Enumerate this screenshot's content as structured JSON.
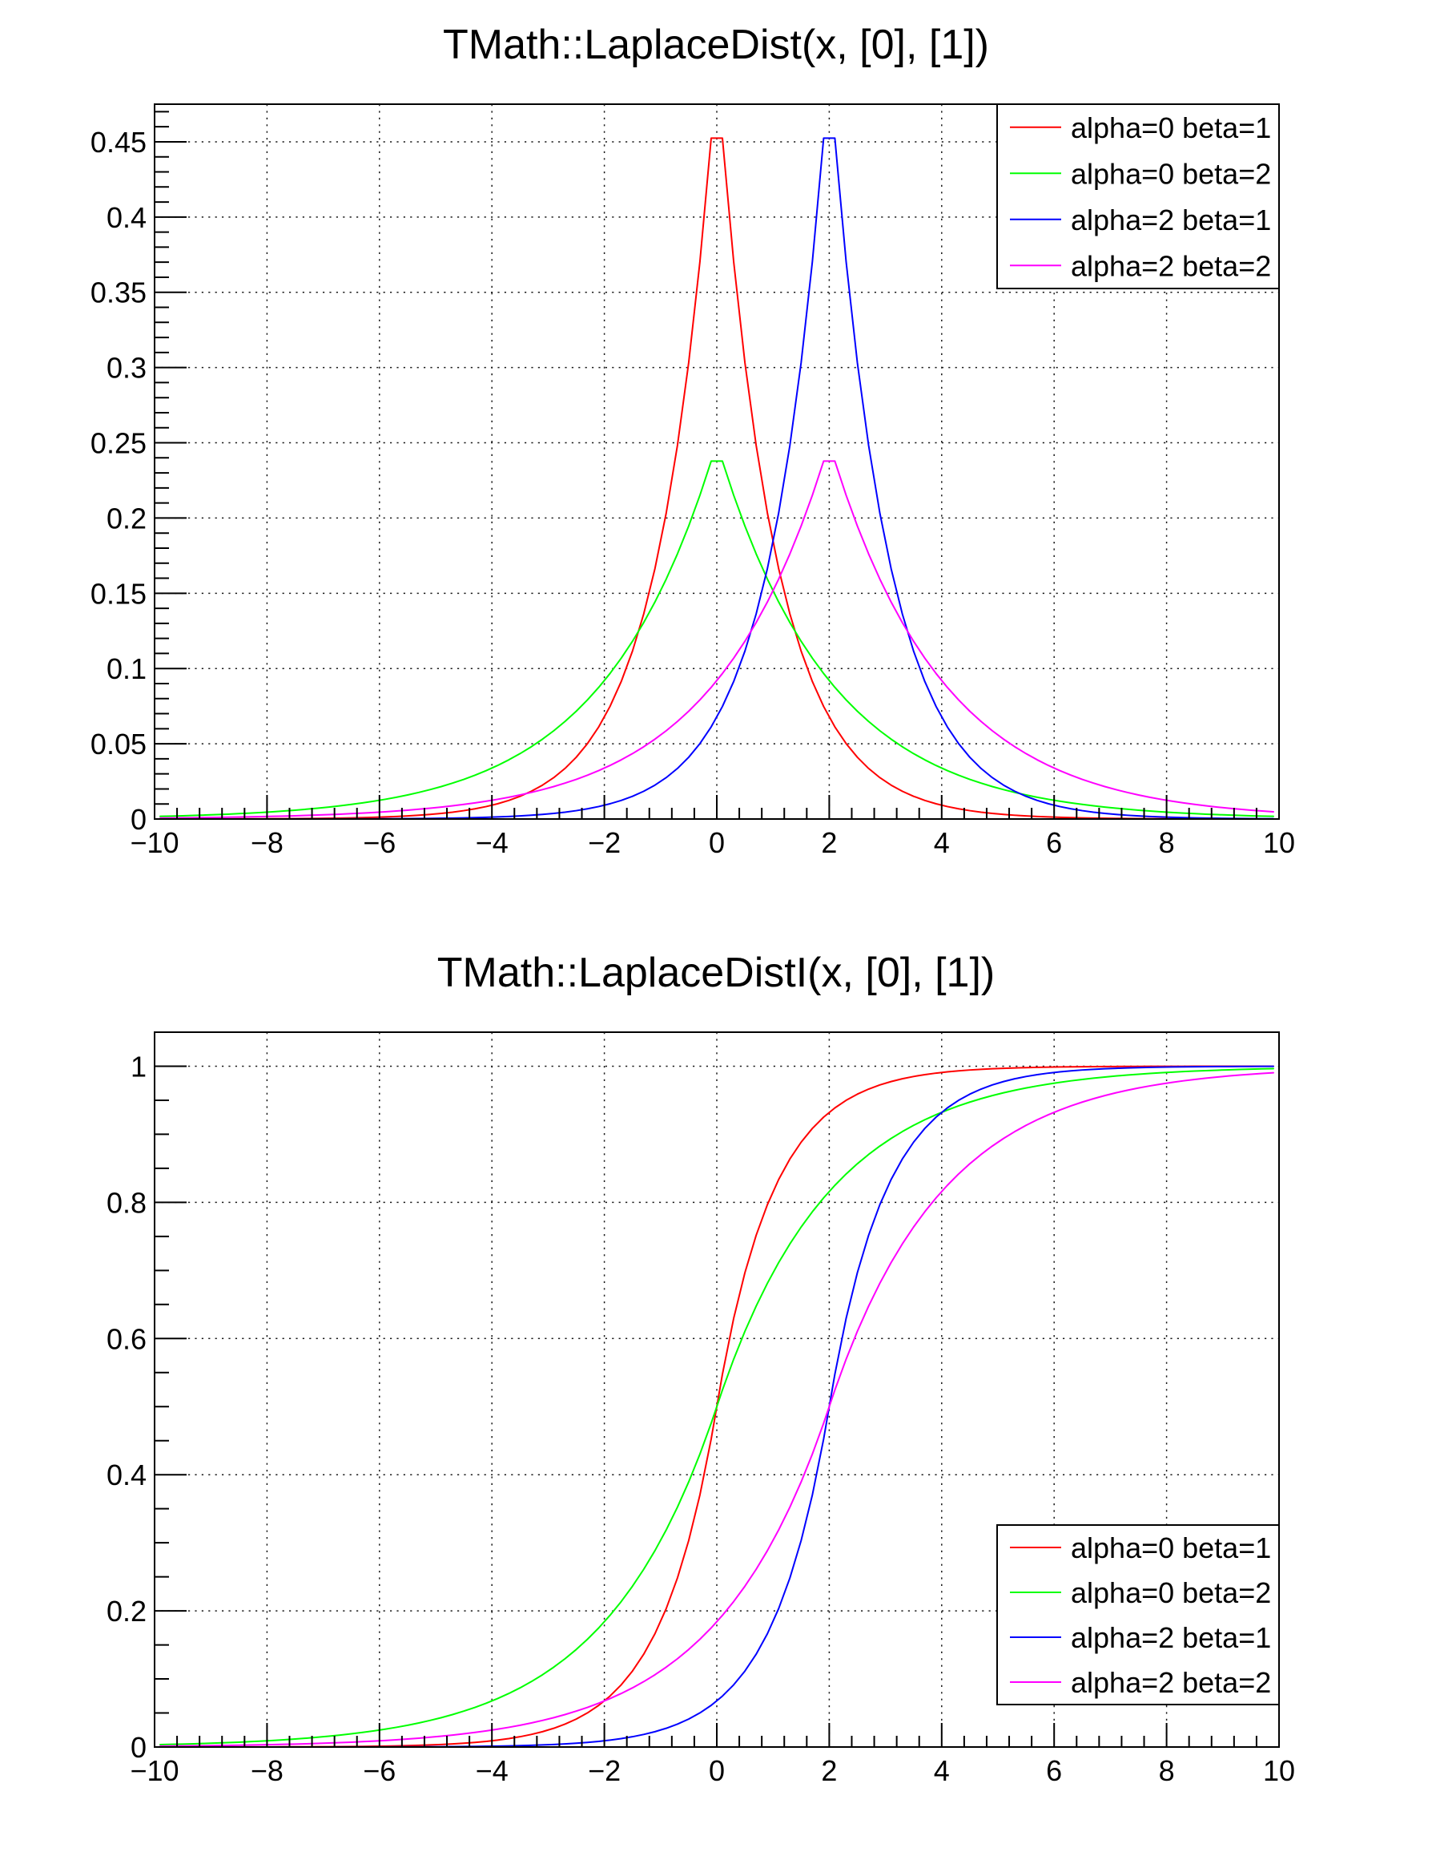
{
  "canvas": {
    "background": "#ffffff",
    "frame_color": "#000000",
    "grid_color": "#1a1a1a",
    "text_color": "#000000"
  },
  "chart_data": [
    {
      "type": "line",
      "title": "TMath::LaplaceDist(x, [0], [1])",
      "function": "laplace_pdf",
      "sampling": {
        "npx": 100,
        "method": "bin-centers"
      },
      "x_range": [
        -10,
        10
      ],
      "y_range": [
        0,
        0.475
      ],
      "grid": true,
      "x_ticks": {
        "major": [
          -10,
          -8,
          -6,
          -4,
          -2,
          0,
          2,
          4,
          6,
          8,
          10
        ],
        "labels": [
          "−10",
          "−8",
          "−6",
          "−4",
          "−2",
          "0",
          "2",
          "4",
          "6",
          "8",
          "10"
        ],
        "minor_step": 0.4
      },
      "y_ticks": {
        "major": [
          0,
          0.05,
          0.1,
          0.15,
          0.2,
          0.25,
          0.3,
          0.35,
          0.4,
          0.45
        ],
        "labels": [
          "0",
          "0.05",
          "0.1",
          "0.15",
          "0.2",
          "0.25",
          "0.3",
          "0.35",
          "0.4",
          "0.45"
        ],
        "minor_step": 0.01
      },
      "legend": {
        "position": "top-right"
      },
      "series": [
        {
          "label": "alpha=0 beta=1",
          "color": "#ff0000",
          "alpha": 0,
          "beta": 1,
          "peak": {
            "x": 0,
            "y": 0.4524
          }
        },
        {
          "label": "alpha=0 beta=2",
          "color": "#00ff00",
          "alpha": 0,
          "beta": 2,
          "peak": {
            "x": 0,
            "y": 0.2378
          }
        },
        {
          "label": "alpha=2 beta=1",
          "color": "#0000ff",
          "alpha": 2,
          "beta": 1,
          "peak": {
            "x": 2,
            "y": 0.4524
          }
        },
        {
          "label": "alpha=2 beta=2",
          "color": "#ff00ff",
          "alpha": 2,
          "beta": 2,
          "peak": {
            "x": 2,
            "y": 0.2378
          }
        }
      ]
    },
    {
      "type": "line",
      "title": "TMath::LaplaceDistI(x, [0], [1])",
      "function": "laplace_cdf",
      "sampling": {
        "npx": 100,
        "method": "bin-centers"
      },
      "x_range": [
        -10,
        10
      ],
      "y_range": [
        0,
        1.05
      ],
      "grid": true,
      "x_ticks": {
        "major": [
          -10,
          -8,
          -6,
          -4,
          -2,
          0,
          2,
          4,
          6,
          8,
          10
        ],
        "labels": [
          "−10",
          "−8",
          "−6",
          "−4",
          "−2",
          "0",
          "2",
          "4",
          "6",
          "8",
          "10"
        ],
        "minor_step": 0.4
      },
      "y_ticks": {
        "major": [
          0,
          0.2,
          0.4,
          0.6,
          0.8,
          1
        ],
        "labels": [
          "0",
          "0.2",
          "0.4",
          "0.6",
          "0.8",
          "1"
        ],
        "minor_step": 0.05
      },
      "legend": {
        "position": "bottom-right"
      },
      "series": [
        {
          "label": "alpha=0 beta=1",
          "color": "#ff0000",
          "alpha": 0,
          "beta": 1,
          "asymptote_y": 1
        },
        {
          "label": "alpha=0 beta=2",
          "color": "#00ff00",
          "alpha": 0,
          "beta": 2,
          "asymptote_y": 1
        },
        {
          "label": "alpha=2 beta=1",
          "color": "#0000ff",
          "alpha": 2,
          "beta": 1,
          "asymptote_y": 1
        },
        {
          "label": "alpha=2 beta=2",
          "color": "#ff00ff",
          "alpha": 2,
          "beta": 2,
          "asymptote_y": 1
        }
      ]
    }
  ]
}
